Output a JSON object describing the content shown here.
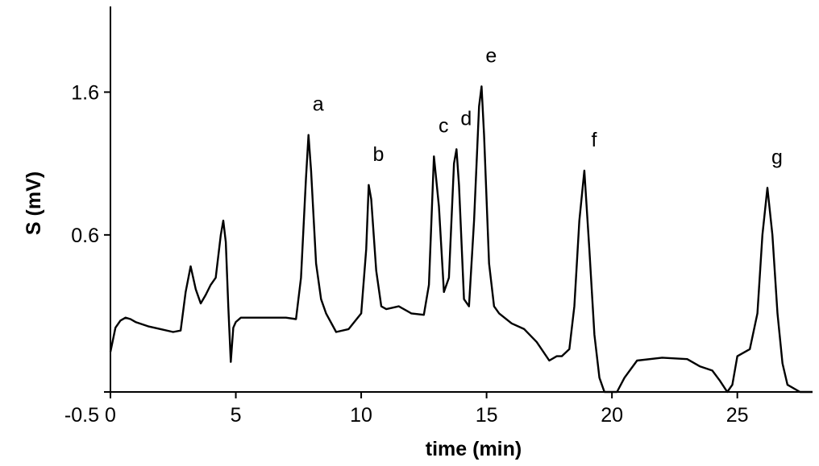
{
  "chart_data": {
    "type": "line",
    "title": "",
    "xlabel": "time (min)",
    "ylabel": "S (mV)",
    "xlim": [
      0,
      28
    ],
    "ylim": [
      -0.5,
      2.2
    ],
    "xticks": [
      {
        "value": 0,
        "label": "0"
      },
      {
        "value": 5,
        "label": "5"
      },
      {
        "value": 10,
        "label": "10"
      },
      {
        "value": 15,
        "label": "15"
      },
      {
        "value": 20,
        "label": "20"
      },
      {
        "value": 25,
        "label": "25"
      }
    ],
    "yticks": [
      {
        "value": -0.5,
        "label": "-0.5"
      },
      {
        "value": 0.6,
        "label": "0.6"
      },
      {
        "value": 1.6,
        "label": "1.6"
      }
    ],
    "grid": false,
    "legend": "none",
    "line_color": "#000000",
    "annotations": [
      {
        "label": "a",
        "x": 7.9,
        "y": 1.3
      },
      {
        "label": "b",
        "x": 10.3,
        "y": 0.95
      },
      {
        "label": "c",
        "x": 12.9,
        "y": 1.15
      },
      {
        "label": "d",
        "x": 13.8,
        "y": 1.2
      },
      {
        "label": "e",
        "x": 14.8,
        "y": 1.64
      },
      {
        "label": "f",
        "x": 18.9,
        "y": 1.05
      },
      {
        "label": "g",
        "x": 26.2,
        "y": 0.93
      }
    ],
    "series": [
      {
        "x": [
          0.0,
          0.2,
          0.4,
          0.6,
          0.8,
          1.0,
          1.5,
          2.0,
          2.5,
          2.8,
          3.0,
          3.2,
          3.4,
          3.6,
          3.8,
          4.0,
          4.2,
          4.4,
          4.5,
          4.6,
          4.7,
          4.8,
          4.9,
          5.0,
          5.2,
          5.5,
          6.0,
          7.0,
          7.4,
          7.6,
          7.8,
          7.9,
          8.0,
          8.2,
          8.4,
          8.6,
          9.0,
          9.5,
          10.0,
          10.2,
          10.3,
          10.4,
          10.6,
          10.8,
          11.0,
          11.5,
          12.0,
          12.5,
          12.7,
          12.9,
          13.1,
          13.3,
          13.5,
          13.7,
          13.8,
          13.9,
          14.1,
          14.3,
          14.5,
          14.7,
          14.8,
          14.9,
          15.1,
          15.3,
          15.5,
          16.0,
          16.5,
          17.0,
          17.5,
          17.8,
          18.0,
          18.3,
          18.5,
          18.7,
          18.9,
          19.1,
          19.3,
          19.5,
          19.7,
          20.0,
          20.2,
          20.5,
          21.0,
          22.0,
          23.0,
          23.5,
          24.0,
          24.3,
          24.6,
          24.8,
          25.0,
          25.5,
          25.8,
          26.0,
          26.2,
          26.4,
          26.6,
          26.8,
          27.0,
          27.5,
          28.0
        ],
        "values": [
          -0.22,
          -0.05,
          0.0,
          0.02,
          0.01,
          -0.01,
          -0.04,
          -0.06,
          -0.08,
          -0.07,
          0.2,
          0.38,
          0.22,
          0.12,
          0.18,
          0.25,
          0.3,
          0.6,
          0.7,
          0.55,
          0.1,
          -0.29,
          -0.05,
          -0.01,
          0.02,
          0.02,
          0.02,
          0.02,
          0.01,
          0.3,
          1.0,
          1.3,
          1.05,
          0.4,
          0.15,
          0.05,
          -0.08,
          -0.06,
          0.05,
          0.5,
          0.95,
          0.85,
          0.35,
          0.1,
          0.08,
          0.1,
          0.05,
          0.04,
          0.25,
          1.15,
          0.8,
          0.2,
          0.3,
          1.1,
          1.2,
          0.95,
          0.15,
          0.1,
          0.7,
          1.5,
          1.64,
          1.3,
          0.4,
          0.1,
          0.05,
          -0.02,
          -0.06,
          -0.15,
          -0.28,
          -0.25,
          -0.25,
          -0.2,
          0.1,
          0.7,
          1.05,
          0.5,
          -0.1,
          -0.4,
          -0.52,
          -0.55,
          -0.5,
          -0.4,
          -0.28,
          -0.26,
          -0.27,
          -0.32,
          -0.35,
          -0.42,
          -0.52,
          -0.45,
          -0.25,
          -0.2,
          0.05,
          0.6,
          0.93,
          0.6,
          0.05,
          -0.3,
          -0.45,
          -0.55,
          -0.6
        ]
      }
    ]
  }
}
